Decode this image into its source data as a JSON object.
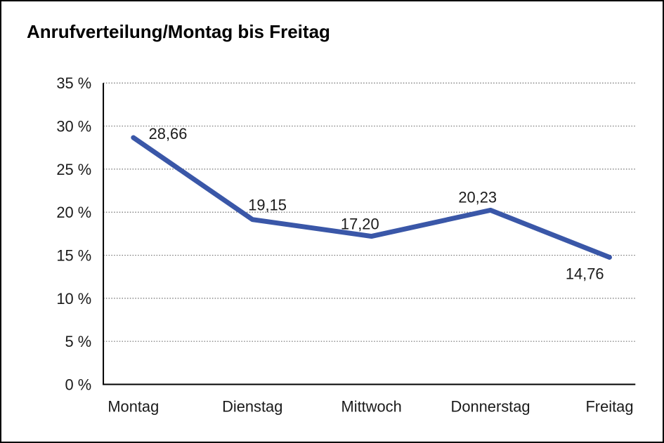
{
  "window": {
    "background_color": "#ffffff",
    "frame_border_color": "#000000"
  },
  "chart_data": {
    "type": "line",
    "title": "Anrufverteilung/Montag bis Freitag",
    "categories": [
      "Montag",
      "Dienstag",
      "Mittwoch",
      "Donnerstag",
      "Freitag"
    ],
    "values": [
      28.66,
      19.15,
      17.2,
      20.23,
      14.76
    ],
    "point_labels": [
      "28,66",
      "19,15",
      "17,20",
      "20,23",
      "14,76"
    ],
    "y_ticks": [
      0,
      5,
      10,
      15,
      20,
      25,
      30,
      35
    ],
    "y_tick_labels": [
      "0 %",
      "5 %",
      "10 %",
      "15 %",
      "20 %",
      "25 %",
      "30 %",
      "35 %"
    ],
    "ylim": [
      0,
      35
    ],
    "xlabel": "",
    "ylabel": "",
    "grid": "horizontal-dotted",
    "legend": "none",
    "line_color": "#3a57a8",
    "axis_color": "#000000",
    "grid_color": "#6e6e6e",
    "text_color": "#1a1a1a"
  }
}
